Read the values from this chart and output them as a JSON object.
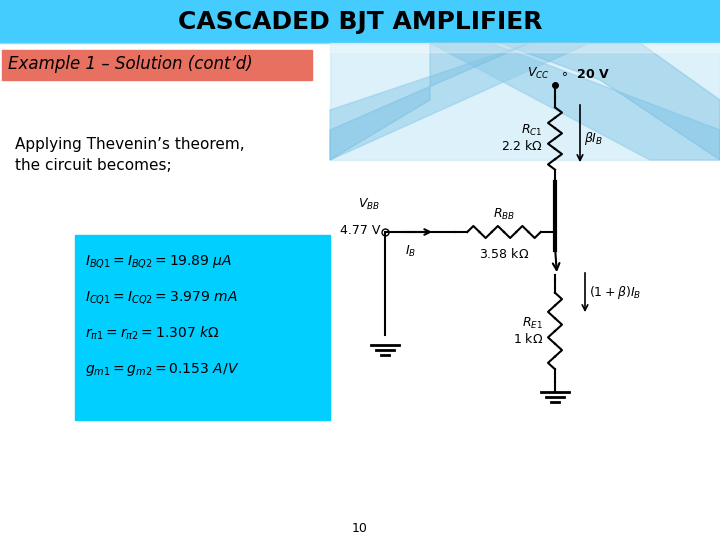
{
  "title": "CASCADED BJT AMPLIFIER",
  "subtitle": "Example 1 – Solution (cont’d)",
  "body_text_line1": "Applying Thevenin’s theorem,",
  "body_text_line2": "the circuit becomes;",
  "header_color": "#40BFFF",
  "subtitle_bg": "#E87060",
  "box_bg_color": "#00CFFF",
  "equations": [
    "$I_{BQ1} = I_{BQ2} = 19.89\\ \\mu A$",
    "$I_{CQ1} = I_{CQ2} = 3.979\\ mA$",
    "$r_{\\pi 1} = r_{\\pi 2} = 1.307\\ k\\Omega$",
    "$g_{m1} = g_{m2} = 0.153\\ A/V$"
  ],
  "page_number": "10",
  "vcc_label": "$V_{CC}$",
  "vcc_value": "20 V",
  "vbb_label": "$V_{BB}$",
  "vbb_value": "4.77 V",
  "rc1_label": "$R_{C1}$",
  "rc1_value": "2.2 k$\\Omega$",
  "rbb_label": "$R_{BB}$",
  "rbb_value": "3.58 k$\\Omega$",
  "re1_label": "$R_{E1}$",
  "re1_value": "1 k$\\Omega$",
  "beta_ib": "$\\beta I_B$",
  "one_plus_beta_ib": "$(1+\\beta)I_B$",
  "ib_label": "$I_B$"
}
